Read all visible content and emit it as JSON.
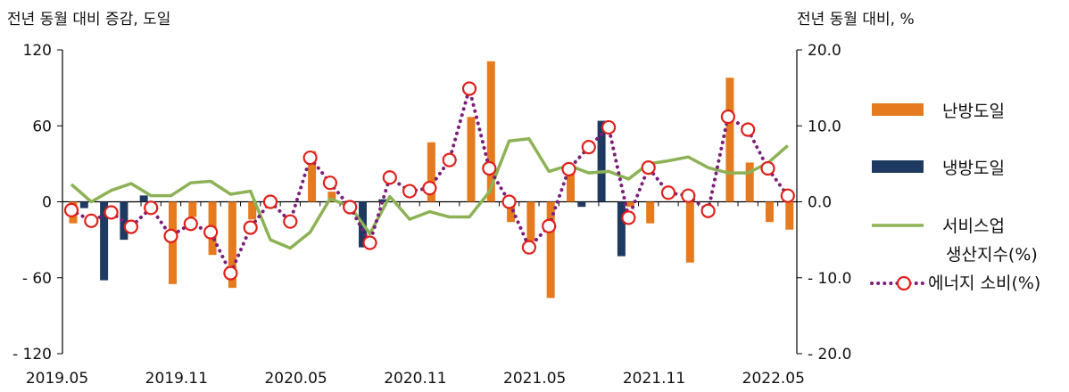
{
  "chart_data": {
    "type": "bar+line",
    "left_axis_title": "전년 동월 대비 증감, 도일",
    "right_axis_title": "전년 동월 대비, %",
    "left_ylim": [
      -120,
      120
    ],
    "right_ylim": [
      -20,
      20
    ],
    "left_ticks": [
      "120",
      "60",
      "0",
      "- 60",
      "- 120"
    ],
    "right_ticks": [
      "20.0",
      "10.0",
      "0.0",
      "- 10.0",
      "- 20.0"
    ],
    "x_tick_labels": [
      "2019.05",
      "2019.11",
      "2020.05",
      "2020.11",
      "2021.05",
      "2021.11",
      "2022.05"
    ],
    "categories": [
      "2019.05",
      "2019.06",
      "2019.07",
      "2019.08",
      "2019.09",
      "2019.10",
      "2019.11",
      "2019.12",
      "2020.01",
      "2020.02",
      "2020.03",
      "2020.04",
      "2020.05",
      "2020.06",
      "2020.07",
      "2020.08",
      "2020.09",
      "2020.10",
      "2020.11",
      "2020.12",
      "2021.01",
      "2021.02",
      "2021.03",
      "2021.04",
      "2021.05",
      "2021.06",
      "2021.07",
      "2021.08",
      "2021.09",
      "2021.10",
      "2021.11",
      "2021.12",
      "2022.01",
      "2022.02",
      "2022.03",
      "2022.04",
      "2022.05"
    ],
    "series": [
      {
        "name": "난방도일",
        "type": "bar",
        "axis": "left",
        "color": "#E57A1E",
        "values": [
          -17,
          0,
          0,
          0,
          0,
          -65,
          -12,
          -42,
          -68,
          -14,
          0,
          0,
          40,
          8,
          0,
          0,
          0,
          0,
          47,
          0,
          67,
          111,
          -16,
          -31,
          -76,
          28,
          0,
          0,
          -4,
          -17,
          0,
          -48,
          0,
          98,
          31,
          -16,
          -22
        ]
      },
      {
        "name": "냉방도일",
        "type": "bar",
        "axis": "left",
        "color": "#1F3A60",
        "values": [
          0,
          -5,
          -62,
          -30,
          5,
          0,
          0,
          0,
          0,
          0,
          0,
          0,
          0,
          0,
          0,
          -36,
          2,
          0,
          0,
          0,
          0,
          0,
          0,
          0,
          0,
          0,
          -4,
          64,
          -43,
          0,
          0,
          0,
          0,
          0,
          0,
          0,
          0
        ]
      },
      {
        "name": "서비스업 생산지수(%)",
        "type": "line",
        "axis": "right",
        "color": "#8DB255",
        "values": [
          2.3,
          0.0,
          1.5,
          2.4,
          0.8,
          0.8,
          2.5,
          2.7,
          1.0,
          1.4,
          -5.0,
          -6.1,
          -4.0,
          0.4,
          -0.6,
          -4.2,
          0.7,
          -2.3,
          -1.3,
          -2.0,
          -2.0,
          1.3,
          8.0,
          8.3,
          4.0,
          4.8,
          3.8,
          4.0,
          3.0,
          5.0,
          5.4,
          5.9,
          4.5,
          3.8,
          3.8,
          5.1,
          7.4
        ]
      },
      {
        "name": "에너지 소비(%)",
        "type": "line",
        "axis": "right",
        "color": "#7A1F7A",
        "values": [
          -1.1,
          -2.5,
          -1.4,
          -3.3,
          -0.8,
          -4.5,
          -2.9,
          -4.0,
          -9.4,
          -3.4,
          0.0,
          -2.6,
          5.8,
          2.5,
          -0.7,
          -5.4,
          3.2,
          1.4,
          1.8,
          5.5,
          14.9,
          4.4,
          0.0,
          -6.0,
          -3.2,
          4.3,
          7.2,
          9.8,
          -2.1,
          4.5,
          1.2,
          0.8,
          -1.2,
          11.2,
          9.5,
          4.4,
          0.8
        ]
      }
    ],
    "legend": [
      {
        "label": "난방도일"
      },
      {
        "label": "냉방도일"
      },
      {
        "label_line1": "서비스업",
        "label_line2": "생산지수(%)"
      },
      {
        "label": "에너지  소비(%)"
      }
    ],
    "legend_position": "right",
    "grid": false
  }
}
